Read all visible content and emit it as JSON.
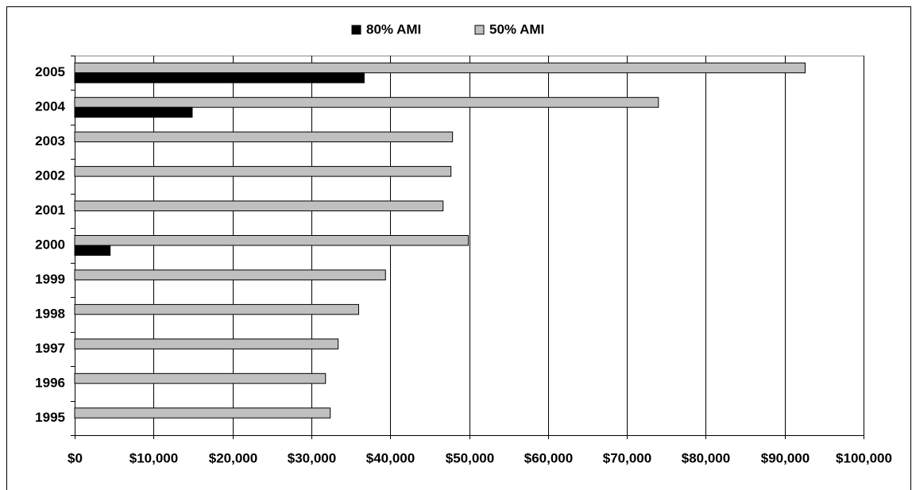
{
  "chart_data": {
    "type": "hbar",
    "categories": [
      "1995",
      "1996",
      "1997",
      "1998",
      "1999",
      "2000",
      "2001",
      "2002",
      "2003",
      "2004",
      "2005"
    ],
    "series": [
      {
        "name": "80% AMI",
        "color": "#000000",
        "values": [
          null,
          null,
          null,
          null,
          null,
          4500,
          null,
          null,
          null,
          14900,
          36700
        ]
      },
      {
        "name": "50% AMI",
        "color": "#c0c0c0",
        "values": [
          32400,
          31800,
          33400,
          36000,
          39400,
          49900,
          46700,
          47700,
          47900,
          74000,
          92600
        ]
      }
    ],
    "xlim": [
      0,
      100000
    ],
    "xticks": [
      {
        "value": 0,
        "label": "$0"
      },
      {
        "value": 10000,
        "label": "$10,000"
      },
      {
        "value": 20000,
        "label": "$20,000"
      },
      {
        "value": 30000,
        "label": "$30,000"
      },
      {
        "value": 40000,
        "label": "$40,000"
      },
      {
        "value": 50000,
        "label": "$50,000"
      },
      {
        "value": 60000,
        "label": "$60,000"
      },
      {
        "value": 70000,
        "label": "$70,000"
      },
      {
        "value": 80000,
        "label": "$80,000"
      },
      {
        "value": 90000,
        "label": "$90,000"
      },
      {
        "value": 100000,
        "label": "$100,000"
      }
    ],
    "grid": true,
    "legend": "top"
  }
}
